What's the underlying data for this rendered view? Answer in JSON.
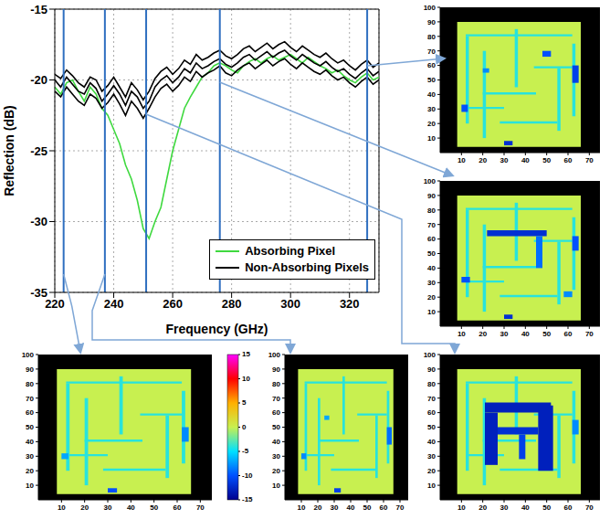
{
  "chart_data": [
    {
      "type": "line",
      "xlabel": "Frequency (GHz)",
      "ylabel": "Reflection (dB)",
      "x": [
        220,
        222,
        224,
        226,
        228,
        230,
        232,
        234,
        236,
        238,
        240,
        242,
        244,
        246,
        248,
        250,
        252,
        254,
        256,
        258,
        260,
        262,
        264,
        266,
        268,
        270,
        272,
        274,
        276,
        278,
        280,
        282,
        284,
        286,
        288,
        290,
        292,
        294,
        296,
        298,
        300,
        302,
        304,
        306,
        308,
        310,
        312,
        314,
        316,
        318,
        320,
        322,
        324,
        326,
        328,
        330
      ],
      "series": [
        {
          "name": "Absorbing Pixel",
          "color": "#3fd93f",
          "values": [
            -20.5,
            -21,
            -20.2,
            -20,
            -20.8,
            -21.5,
            -20.5,
            -21,
            -22,
            -22.5,
            -23.5,
            -24.5,
            -26,
            -27,
            -28.5,
            -30.5,
            -31.2,
            -30,
            -29,
            -27,
            -25,
            -23.5,
            -22,
            -21.2,
            -20.5,
            -19.8,
            -19.5,
            -19,
            -18.8,
            -19,
            -19.3,
            -19.5,
            -19,
            -18.7,
            -18.5,
            -18.8,
            -18.5,
            -18.3,
            -18.6,
            -18.4,
            -18.2,
            -18.5,
            -18.8,
            -18.4,
            -18.7,
            -19,
            -19.2,
            -19.5,
            -19.3,
            -19.7,
            -20,
            -20.2,
            -19.8,
            -19.5,
            -20,
            -19.8
          ]
        },
        {
          "name": "Non-Absorbing Pixels",
          "color": "#000000",
          "values": [
            -20,
            -20.5,
            -19.8,
            -20.3,
            -20.8,
            -21,
            -20.2,
            -20.6,
            -21.5,
            -21,
            -20.4,
            -21,
            -21.8,
            -20.8,
            -21.2,
            -22,
            -21.5,
            -20.5,
            -20,
            -19.7,
            -20.2,
            -19.8,
            -19.2,
            -19.5,
            -18.8,
            -19.2,
            -19,
            -18.7,
            -18.5,
            -18.9,
            -19.1,
            -18.8,
            -18.4,
            -18.2,
            -18.6,
            -18.3,
            -18,
            -18.4,
            -18.1,
            -17.9,
            -18.3,
            -18.6,
            -18.2,
            -18.5,
            -18.8,
            -19,
            -18.7,
            -19.1,
            -19.4,
            -19.2,
            -19.6,
            -19.9,
            -19.5,
            -19.2,
            -19.7,
            -19.4
          ]
        },
        {
          "name": "Non-Absorbing Pixels",
          "color": "#000000",
          "values": [
            -20.8,
            -21.2,
            -20.5,
            -21,
            -21.5,
            -21.8,
            -21,
            -21.3,
            -22,
            -21.6,
            -21,
            -21.7,
            -22.5,
            -21.5,
            -22,
            -22.7,
            -22,
            -21.2,
            -20.6,
            -20.3,
            -20.8,
            -20.4,
            -19.8,
            -20.1,
            -19.4,
            -19.8,
            -19.5,
            -19.3,
            -19,
            -19.5,
            -19.7,
            -19.3,
            -19,
            -18.8,
            -19.2,
            -18.9,
            -18.6,
            -19,
            -18.7,
            -18.5,
            -18.9,
            -19.2,
            -18.8,
            -19.1,
            -19.4,
            -19.6,
            -19.3,
            -19.7,
            -20,
            -19.8,
            -20.2,
            -20.5,
            -20.1,
            -19.8,
            -20.3,
            -20
          ]
        },
        {
          "name": "Non-Absorbing Pixels",
          "color": "#000000",
          "values": [
            -19.6,
            -19.9,
            -19.3,
            -19.7,
            -20.2,
            -20.5,
            -19.8,
            -20,
            -20.8,
            -20.4,
            -19.8,
            -20.5,
            -21.2,
            -20.2,
            -20.7,
            -21.4,
            -20.8,
            -19.9,
            -19.4,
            -19.1,
            -19.6,
            -19.2,
            -18.6,
            -18.9,
            -18.2,
            -18.6,
            -18.4,
            -18.1,
            -17.9,
            -18.3,
            -18.5,
            -18.2,
            -17.8,
            -17.6,
            -18,
            -17.7,
            -17.4,
            -17.8,
            -17.5,
            -17.3,
            -17.7,
            -18,
            -17.6,
            -17.9,
            -18.2,
            -18.4,
            -18.1,
            -18.5,
            -18.8,
            -18.6,
            -19,
            -19.3,
            -18.9,
            -18.6,
            -19.1,
            -18.8
          ]
        }
      ],
      "xlim": [
        220,
        330
      ],
      "xticks": [
        220,
        240,
        260,
        280,
        300,
        320
      ],
      "ylim": [
        -35,
        -15
      ],
      "yticks": [
        -35,
        -30,
        -25,
        -20,
        -15
      ],
      "grid": true,
      "legend": "lower right"
    },
    {
      "type": "heatmap",
      "frequency": 223,
      "xlim": [
        0,
        75
      ],
      "ylim": [
        0,
        100
      ],
      "xticks": [
        10,
        20,
        30,
        40,
        50,
        60,
        70
      ],
      "yticks": [
        10,
        20,
        30,
        40,
        50,
        60,
        70,
        80,
        90,
        100
      ],
      "cells": [
        [
          8,
          66,
          4,
          90,
          0
        ],
        [
          12,
          62,
          80,
          81.5,
          -4
        ],
        [
          12,
          13.5,
          20,
          80,
          -4
        ],
        [
          20,
          21.5,
          10,
          70,
          -4
        ],
        [
          20,
          45,
          40,
          41.5,
          -4
        ],
        [
          35,
          36.5,
          45,
          85,
          -4
        ],
        [
          44,
          62,
          58,
          59.5,
          -4
        ],
        [
          55,
          56.5,
          15,
          58,
          -4
        ],
        [
          28,
          55,
          20,
          21.5,
          -4
        ],
        [
          62,
          63.5,
          25,
          75,
          -4
        ],
        [
          12,
          30,
          30,
          31.5,
          -4
        ],
        [
          62,
          65,
          40,
          50,
          -8
        ],
        [
          30,
          34,
          5,
          8,
          -10
        ],
        [
          10,
          13,
          28,
          32,
          -7
        ]
      ]
    },
    {
      "type": "heatmap",
      "frequency": 237,
      "xlim": [
        0,
        75
      ],
      "ylim": [
        0,
        100
      ],
      "xticks": [
        10,
        20,
        30,
        40,
        50,
        60,
        70
      ],
      "yticks": [
        10,
        20,
        30,
        40,
        50,
        60,
        70,
        80,
        90,
        100
      ],
      "cells": [
        [
          8,
          66,
          4,
          90,
          0
        ],
        [
          12,
          62,
          80,
          81.5,
          -4
        ],
        [
          12,
          13.5,
          20,
          80,
          -4
        ],
        [
          20,
          21.5,
          10,
          70,
          -4
        ],
        [
          20,
          45,
          40,
          41.5,
          -4
        ],
        [
          35,
          36.5,
          45,
          85,
          -4
        ],
        [
          44,
          62,
          58,
          59.5,
          -4
        ],
        [
          55,
          56.5,
          15,
          58,
          -4
        ],
        [
          28,
          55,
          20,
          21.5,
          -4
        ],
        [
          62,
          63.5,
          25,
          75,
          -4
        ],
        [
          12,
          30,
          30,
          31.5,
          -4
        ],
        [
          62,
          65,
          38,
          50,
          -9
        ],
        [
          30,
          34,
          5,
          8,
          -11
        ],
        [
          10,
          13,
          28,
          32,
          -8
        ],
        [
          24,
          27,
          55,
          58,
          -7
        ]
      ]
    },
    {
      "type": "heatmap",
      "frequency": 251,
      "xlim": [
        0,
        75
      ],
      "ylim": [
        0,
        100
      ],
      "xticks": [
        10,
        20,
        30,
        40,
        50,
        60,
        70
      ],
      "yticks": [
        10,
        20,
        30,
        40,
        50,
        60,
        70,
        80,
        90,
        100
      ],
      "cells": [
        [
          8,
          66,
          4,
          90,
          0
        ],
        [
          12,
          62,
          80,
          81.5,
          -4
        ],
        [
          12,
          13.5,
          20,
          80,
          -4
        ],
        [
          20,
          21.5,
          10,
          70,
          -4
        ],
        [
          20,
          45,
          40,
          41.5,
          -4
        ],
        [
          35,
          36.5,
          45,
          85,
          -4
        ],
        [
          44,
          62,
          58,
          59.5,
          -4
        ],
        [
          55,
          56.5,
          15,
          58,
          -4
        ],
        [
          28,
          55,
          20,
          21.5,
          -4
        ],
        [
          62,
          63.5,
          25,
          75,
          -4
        ],
        [
          12,
          30,
          30,
          31.5,
          -4
        ],
        [
          21,
          27,
          24,
          60,
          -13
        ],
        [
          21,
          52,
          60,
          67,
          -13
        ],
        [
          46,
          53,
          20,
          65,
          -13
        ],
        [
          27,
          46,
          45,
          50,
          -12
        ],
        [
          37,
          40,
          28,
          45,
          -11
        ],
        [
          62,
          65,
          45,
          55,
          -8
        ]
      ]
    },
    {
      "type": "heatmap",
      "frequency": 276,
      "xlim": [
        0,
        75
      ],
      "ylim": [
        0,
        100
      ],
      "xticks": [
        10,
        20,
        30,
        40,
        50,
        60,
        70
      ],
      "yticks": [
        10,
        20,
        30,
        40,
        50,
        60,
        70,
        80,
        90,
        100
      ],
      "cells": [
        [
          8,
          66,
          4,
          90,
          0
        ],
        [
          12,
          62,
          80,
          81.5,
          -4
        ],
        [
          12,
          13.5,
          20,
          80,
          -4
        ],
        [
          20,
          21.5,
          10,
          70,
          -4
        ],
        [
          20,
          45,
          40,
          41.5,
          -4
        ],
        [
          35,
          36.5,
          45,
          85,
          -4
        ],
        [
          44,
          62,
          58,
          59.5,
          -4
        ],
        [
          55,
          56.5,
          15,
          58,
          -4
        ],
        [
          28,
          55,
          20,
          21.5,
          -4
        ],
        [
          62,
          63.5,
          25,
          75,
          -4
        ],
        [
          12,
          30,
          30,
          31.5,
          -4
        ],
        [
          22,
          50,
          62,
          66,
          -12
        ],
        [
          45,
          48,
          40,
          62,
          -9
        ],
        [
          10,
          14,
          30,
          34,
          -10
        ],
        [
          62,
          65,
          52,
          62,
          -10
        ],
        [
          58,
          62,
          20,
          24,
          -8
        ],
        [
          30,
          34,
          5,
          8,
          -12
        ]
      ]
    },
    {
      "type": "heatmap",
      "frequency": 326,
      "xlim": [
        0,
        75
      ],
      "ylim": [
        0,
        100
      ],
      "xticks": [
        10,
        20,
        30,
        40,
        50,
        60,
        70
      ],
      "yticks": [
        10,
        20,
        30,
        40,
        50,
        60,
        70,
        80,
        90,
        100
      ],
      "cells": [
        [
          8,
          66,
          4,
          90,
          0
        ],
        [
          12,
          62,
          80,
          81.5,
          -4
        ],
        [
          12,
          13.5,
          20,
          80,
          -4
        ],
        [
          20,
          21.5,
          10,
          70,
          -4
        ],
        [
          20,
          45,
          40,
          41.5,
          -4
        ],
        [
          35,
          36.5,
          45,
          85,
          -4
        ],
        [
          44,
          62,
          58,
          59.5,
          -4
        ],
        [
          55,
          56.5,
          15,
          58,
          -4
        ],
        [
          28,
          55,
          20,
          21.5,
          -4
        ],
        [
          62,
          63.5,
          25,
          75,
          -4
        ],
        [
          12,
          30,
          30,
          31.5,
          -4
        ],
        [
          62,
          65,
          48,
          60,
          -11
        ],
        [
          48,
          52,
          66,
          70,
          -10
        ],
        [
          10,
          13,
          28,
          33,
          -10
        ],
        [
          30,
          34,
          5,
          8,
          -12
        ],
        [
          20,
          23,
          55,
          58,
          -8
        ]
      ]
    }
  ],
  "colorbar": {
    "range": [
      -15,
      15
    ],
    "ticks": [
      15,
      10,
      5,
      0,
      -5,
      -10,
      -15
    ]
  }
}
